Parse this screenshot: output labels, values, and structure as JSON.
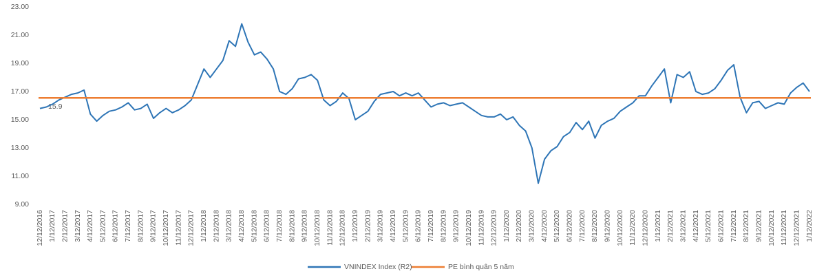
{
  "chart_data": {
    "type": "line",
    "categories": [
      "12/12/2016",
      null,
      "1/12/2017",
      null,
      "2/12/2017",
      null,
      "3/12/2017",
      null,
      "4/12/2017",
      null,
      "5/12/2017",
      null,
      "6/12/2017",
      null,
      "7/12/2017",
      null,
      "8/12/2017",
      null,
      "9/12/2017",
      null,
      "10/12/2017",
      null,
      "11/12/2017",
      null,
      "12/12/2017",
      null,
      "1/12/2018",
      null,
      "2/12/2018",
      null,
      "3/12/2018",
      null,
      "4/12/2018",
      null,
      "5/12/2018",
      null,
      "6/12/2018",
      null,
      "7/12/2018",
      null,
      "8/12/2018",
      null,
      "9/12/2018",
      null,
      "10/12/2018",
      null,
      "11/12/2018",
      null,
      "12/12/2018",
      null,
      "1/12/2019",
      null,
      "2/12/2019",
      null,
      "3/12/2019",
      null,
      "4/12/2019",
      null,
      "5/12/2019",
      null,
      "6/12/2019",
      null,
      "7/12/2019",
      null,
      "8/12/2019",
      null,
      "9/12/2019",
      null,
      "10/12/2019",
      null,
      "11/12/2019",
      null,
      "12/12/2019",
      null,
      "1/12/2020",
      null,
      "2/12/2020",
      null,
      "3/12/2020",
      null,
      "4/12/2020",
      null,
      "5/12/2020",
      null,
      "6/12/2020",
      null,
      "7/12/2020",
      null,
      "8/12/2020",
      null,
      "9/12/2020",
      null,
      "10/12/2020",
      null,
      "11/12/2020",
      null,
      "12/12/2020",
      null,
      "1/12/2021",
      null,
      "2/12/2021",
      null,
      "3/12/2021",
      null,
      "4/12/2021",
      null,
      "5/12/2021",
      null,
      "6/12/2021",
      null,
      "7/12/2021",
      null,
      "8/12/2021",
      null,
      "9/12/2021",
      null,
      "10/12/2021",
      null,
      "11/12/2021",
      null,
      "12/12/2021",
      null,
      "1/12/2022"
    ],
    "series": [
      {
        "name": "VNINDEX Index  (R2)",
        "color": "#2e75b6",
        "values": [
          15.8,
          15.9,
          16.1,
          16.4,
          16.6,
          16.8,
          16.9,
          17.1,
          15.4,
          14.9,
          15.3,
          15.6,
          15.7,
          15.9,
          16.2,
          15.7,
          15.8,
          16.1,
          15.1,
          15.5,
          15.8,
          15.5,
          15.7,
          16.0,
          16.4,
          17.5,
          18.6,
          18.0,
          18.6,
          19.2,
          20.6,
          20.2,
          21.8,
          20.5,
          19.6,
          19.8,
          19.3,
          18.6,
          17.0,
          16.8,
          17.2,
          17.9,
          18.0,
          18.2,
          17.8,
          16.4,
          16.0,
          16.3,
          16.9,
          16.5,
          15.0,
          15.3,
          15.6,
          16.3,
          16.8,
          16.9,
          17.0,
          16.7,
          16.9,
          16.7,
          16.9,
          16.4,
          15.9,
          16.1,
          16.2,
          16.0,
          16.1,
          16.2,
          15.9,
          15.6,
          15.3,
          15.2,
          15.2,
          15.4,
          15.0,
          15.2,
          14.6,
          14.2,
          13.0,
          10.5,
          12.2,
          12.8,
          13.1,
          13.8,
          14.1,
          14.8,
          14.3,
          14.9,
          13.7,
          14.6,
          14.9,
          15.1,
          15.6,
          15.9,
          16.2,
          16.7,
          16.7,
          17.4,
          18.0,
          18.6,
          16.2,
          18.2,
          18.0,
          18.4,
          17.0,
          16.8,
          16.9,
          17.2,
          17.8,
          18.5,
          18.9,
          16.6,
          15.5,
          16.2,
          16.3,
          15.8,
          16.0,
          16.2,
          16.1,
          16.9,
          17.3,
          17.6,
          17.0
        ]
      },
      {
        "name": "PE bình quân 5 năm",
        "color": "#ed7d31",
        "value": 16.55
      }
    ],
    "annotations": [
      {
        "text": "15.9"
      }
    ],
    "ylim": [
      9,
      23
    ],
    "yticks": [
      {
        "value": 9,
        "label": "9.00"
      },
      {
        "value": 11,
        "label": "11.00"
      },
      {
        "value": 13,
        "label": "13.00"
      },
      {
        "value": 15,
        "label": "15.00"
      },
      {
        "value": 17,
        "label": "17.00"
      },
      {
        "value": 19,
        "label": "19.00"
      },
      {
        "value": 21,
        "label": "21.00"
      },
      {
        "value": 23,
        "label": "23.00"
      }
    ],
    "grid": false,
    "legend": "bottom"
  }
}
